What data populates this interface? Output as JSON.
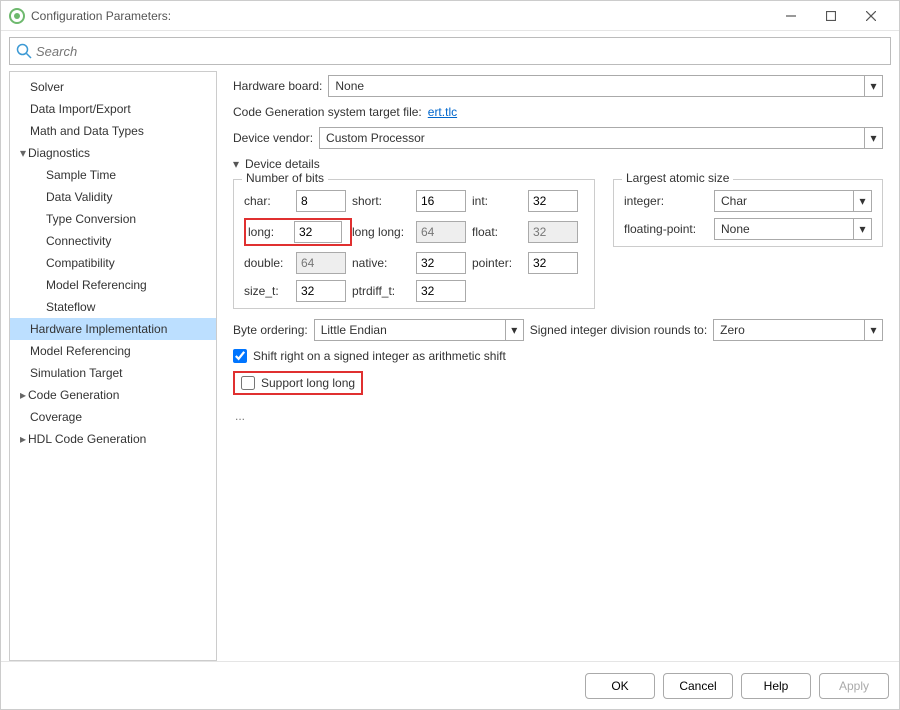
{
  "window": {
    "title": "Configuration Parameters:"
  },
  "search": {
    "placeholder": "Search"
  },
  "sidebar": {
    "items": [
      {
        "label": "Solver",
        "indent": 0
      },
      {
        "label": "Data Import/Export",
        "indent": 0
      },
      {
        "label": "Math and Data Types",
        "indent": 0
      },
      {
        "label": "Diagnostics",
        "indent": 0,
        "arrow": "▾"
      },
      {
        "label": "Sample Time",
        "indent": 1
      },
      {
        "label": "Data Validity",
        "indent": 1
      },
      {
        "label": "Type Conversion",
        "indent": 1
      },
      {
        "label": "Connectivity",
        "indent": 1
      },
      {
        "label": "Compatibility",
        "indent": 1
      },
      {
        "label": "Model Referencing",
        "indent": 1
      },
      {
        "label": "Stateflow",
        "indent": 1
      },
      {
        "label": "Hardware Implementation",
        "indent": 0,
        "selected": true
      },
      {
        "label": "Model Referencing",
        "indent": 0
      },
      {
        "label": "Simulation Target",
        "indent": 0
      },
      {
        "label": "Code Generation",
        "indent": 0,
        "arrow": "▸"
      },
      {
        "label": "Coverage",
        "indent": 0
      },
      {
        "label": "HDL Code Generation",
        "indent": 0,
        "arrow": "▸"
      }
    ]
  },
  "main": {
    "hardware_board_label": "Hardware board:",
    "hardware_board_value": "None",
    "target_file_label": "Code Generation system target file:  ",
    "target_file_link": "ert.tlc",
    "device_vendor_label": "Device vendor:",
    "device_vendor_value": "Custom Processor",
    "device_details_header": "Device details",
    "bits_group_title": "Number of bits",
    "atomic_group_title": "Largest atomic size",
    "bits": {
      "char_label": "char:",
      "char_val": "8",
      "short_label": "short:",
      "short_val": "16",
      "int_label": "int:",
      "int_val": "32",
      "long_label": "long:",
      "long_val": "32",
      "longlong_label": "long long:",
      "longlong_val": "64",
      "float_label": "float:",
      "float_val": "32",
      "double_label": "double:",
      "double_val": "64",
      "native_label": "native:",
      "native_val": "32",
      "pointer_label": "pointer:",
      "pointer_val": "32",
      "sizet_label": "size_t:",
      "sizet_val": "32",
      "ptrdiff_label": "ptrdiff_t:",
      "ptrdiff_val": "32"
    },
    "atomic": {
      "integer_label": "integer:",
      "integer_value": "Char",
      "float_label": "floating-point:",
      "float_value": "None"
    },
    "byte_ordering_label": "Byte ordering:",
    "byte_ordering_value": "Little Endian",
    "division_label": "Signed integer division rounds to:",
    "division_value": "Zero",
    "shift_right_label": "Shift right on a signed integer as arithmetic shift",
    "support_longlong_label": "Support long long",
    "ellipsis": "..."
  },
  "buttons": {
    "ok": "OK",
    "cancel": "Cancel",
    "help": "Help",
    "apply": "Apply"
  },
  "highlights": {
    "long_color": "#e03030",
    "longlong_color": "#e03030"
  }
}
